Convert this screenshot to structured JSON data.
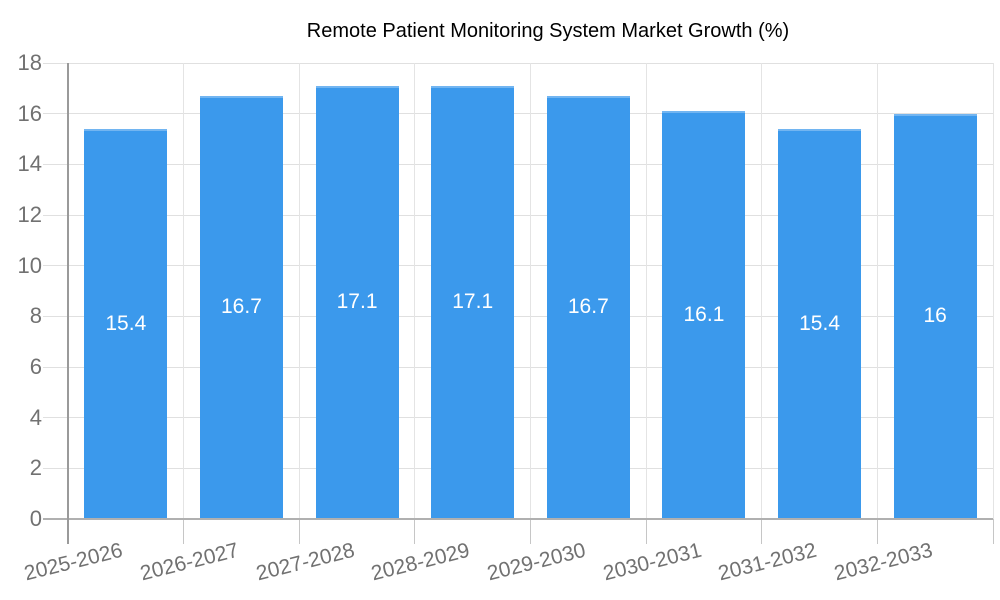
{
  "legend": {
    "label": "Remote Patient Monitoring System Market Growth (%)"
  },
  "chart_data": {
    "type": "bar",
    "title": "Remote Patient Monitoring System Market Growth (%)",
    "categories": [
      "2025-2026",
      "2026-2027",
      "2027-2028",
      "2028-2029",
      "2029-2030",
      "2030-2031",
      "2031-2032",
      "2032-2033"
    ],
    "values": [
      15.4,
      16.7,
      17.1,
      17.1,
      16.7,
      16.1,
      15.4,
      16
    ],
    "value_labels": [
      "15.4",
      "16.7",
      "17.1",
      "17.1",
      "16.7",
      "16.1",
      "15.4",
      "16"
    ],
    "xlabel": "",
    "ylabel": "",
    "ylim": [
      0,
      18
    ],
    "yticks": [
      0,
      2,
      4,
      6,
      8,
      10,
      12,
      14,
      16,
      18
    ],
    "grid": true,
    "legend_position": "top",
    "colors": {
      "bar": "#3B99EC",
      "bar_top_edge": "#72B5F1",
      "value_text": "#FFFFFF",
      "axis_text": "#717171",
      "legend_text": "#757575",
      "grid_h": "#E0E0E0",
      "grid_v": "#E4E4E4",
      "baseline": "#B0B0B0",
      "axis_line": "#9A9A9A",
      "tick": "#C6C6C6"
    }
  }
}
